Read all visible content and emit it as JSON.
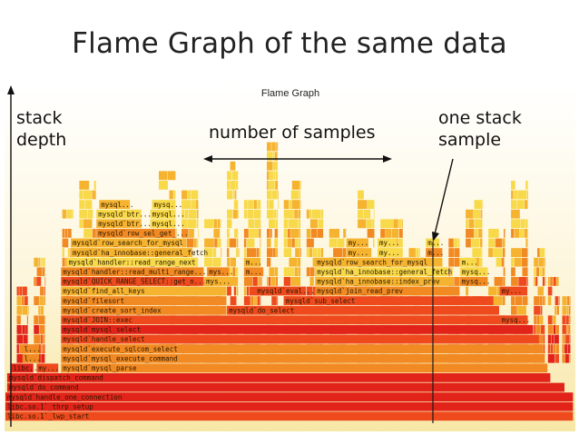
{
  "slide": {
    "title": "Flame Graph of the same data"
  },
  "flamegraph": {
    "title": "Flame Graph",
    "colors": {
      "background": "#fbf3cf",
      "deep_red": "#e2231a",
      "red": "#ee4a1e",
      "orange": "#f28a23",
      "amber": "#f5b330",
      "yellow": "#f8d94a"
    }
  },
  "annotations": {
    "stack_depth_line1": "stack",
    "stack_depth_line2": "depth",
    "number_of_samples": "number of samples",
    "one_stack_line1": "one stack",
    "one_stack_line2": "sample"
  },
  "frames": [
    {
      "name": "libc.so.1`_lwp_start",
      "level": 0,
      "start": 0,
      "end": 1
    },
    {
      "name": "libc.so.1`_thrp_setup",
      "level": 1,
      "start": 0,
      "end": 1
    },
    {
      "name": "mysqld`handle_one_connection",
      "level": 2,
      "start": 0,
      "end": 1
    },
    {
      "name": "mysqld`do_command",
      "level": 3,
      "start": 0.003,
      "end": 0.985
    },
    {
      "name": "mysqld`dispatch_command",
      "level": 4,
      "start": 0.003,
      "end": 0.96
    },
    {
      "name": "libc...",
      "level": 5,
      "start": 0.01,
      "end": 0.05
    },
    {
      "name": "my...",
      "level": 5,
      "start": 0.055,
      "end": 0.094
    },
    {
      "name": "mysqld`mysql_parse",
      "level": 5,
      "start": 0.098,
      "end": 0.955
    },
    {
      "name": "l...",
      "level": 6,
      "start": 0.03,
      "end": 0.06
    },
    {
      "name": "mysqld`mysql_execute_command",
      "level": 6,
      "start": 0.098,
      "end": 0.95
    },
    {
      "name": "l...",
      "level": 7,
      "start": 0.03,
      "end": 0.06
    },
    {
      "name": "mysqld`execute_sqlcom_select",
      "level": 7,
      "start": 0.098,
      "end": 0.945
    },
    {
      "name": "mysqld`handle_select",
      "level": 8,
      "start": 0.098,
      "end": 0.94
    },
    {
      "name": "mysqld`mysql_select",
      "level": 9,
      "start": 0.098,
      "end": 0.93
    },
    {
      "name": "mysqld`JOIN::exec",
      "level": 10,
      "start": 0.098,
      "end": 0.92
    },
    {
      "name": "mysq...",
      "level": 10,
      "start": 0.87,
      "end": 0.918
    },
    {
      "name": "mysqld`create_sort_index",
      "level": 11,
      "start": 0.098,
      "end": 0.39
    },
    {
      "name": "mysqld`do_select",
      "level": 11,
      "start": 0.39,
      "end": 0.87
    },
    {
      "name": "mysqld`filesort",
      "level": 12,
      "start": 0.098,
      "end": 0.39
    },
    {
      "name": "mysqld`sub_select",
      "level": 12,
      "start": 0.49,
      "end": 0.86
    },
    {
      "name": "mysqld`find_all_keys",
      "level": 13,
      "start": 0.098,
      "end": 0.39
    },
    {
      "name": "mysqld`eval...",
      "level": 13,
      "start": 0.44,
      "end": 0.53
    },
    {
      "name": "mysqld`join_read_prev",
      "level": 13,
      "start": 0.545,
      "end": 0.8
    },
    {
      "name": "my...",
      "level": 13,
      "start": 0.87,
      "end": 0.91
    },
    {
      "name": "mysqld`QUICK_RANGE_SELECT::get_n...",
      "level": 14,
      "start": 0.098,
      "end": 0.35
    },
    {
      "name": "mys...",
      "level": 14,
      "start": 0.35,
      "end": 0.4
    },
    {
      "name": "mysqld`ha_innobase::index_prev",
      "level": 14,
      "start": 0.545,
      "end": 0.79
    },
    {
      "name": "mysq...",
      "level": 14,
      "start": 0.8,
      "end": 0.85
    },
    {
      "name": "mysqld`handler::read_multi_range...",
      "level": 15,
      "start": 0.098,
      "end": 0.35
    },
    {
      "name": "mys...",
      "level": 15,
      "start": 0.355,
      "end": 0.395
    },
    {
      "name": "m...",
      "level": 15,
      "start": 0.42,
      "end": 0.455
    },
    {
      "name": "mysqld`ha_innobase::general_fetch",
      "level": 15,
      "start": 0.545,
      "end": 0.78
    },
    {
      "name": "mysq...",
      "level": 15,
      "start": 0.8,
      "end": 0.85
    },
    {
      "name": "mysqld`handler::read_range_next",
      "level": 16,
      "start": 0.108,
      "end": 0.34
    },
    {
      "name": "m...",
      "level": 16,
      "start": 0.42,
      "end": 0.45
    },
    {
      "name": "mysqld`row_search_for_mysql",
      "level": 16,
      "start": 0.545,
      "end": 0.77
    },
    {
      "name": "m...",
      "level": 16,
      "start": 0.8,
      "end": 0.83
    },
    {
      "name": "mysqld`ha_innobase::general_fetch",
      "level": 17,
      "start": 0.115,
      "end": 0.33
    },
    {
      "name": "my...",
      "level": 17,
      "start": 0.6,
      "end": 0.645
    },
    {
      "name": "my...",
      "level": 17,
      "start": 0.655,
      "end": 0.69
    },
    {
      "name": "m...",
      "level": 17,
      "start": 0.74,
      "end": 0.77
    },
    {
      "name": "mysqld`row_search_for_mysql",
      "level": 18,
      "start": 0.115,
      "end": 0.31
    },
    {
      "name": "my...",
      "level": 18,
      "start": 0.6,
      "end": 0.64
    },
    {
      "name": "my...",
      "level": 18,
      "start": 0.655,
      "end": 0.69
    },
    {
      "name": "m...",
      "level": 18,
      "start": 0.74,
      "end": 0.765
    },
    {
      "name": "mysqld`row_sel_get_...",
      "level": 19,
      "start": 0.16,
      "end": 0.3
    },
    {
      "name": "mysqld`btr...",
      "level": 20,
      "start": 0.16,
      "end": 0.24
    },
    {
      "name": "mysql...",
      "level": 20,
      "start": 0.255,
      "end": 0.3
    },
    {
      "name": "mysqld`btr...",
      "level": 21,
      "start": 0.16,
      "end": 0.24
    },
    {
      "name": "mysql...",
      "level": 21,
      "start": 0.255,
      "end": 0.3
    },
    {
      "name": "mysql...",
      "level": 22,
      "start": 0.165,
      "end": 0.22
    },
    {
      "name": "mysq...",
      "level": 22,
      "start": 0.258,
      "end": 0.3
    }
  ]
}
